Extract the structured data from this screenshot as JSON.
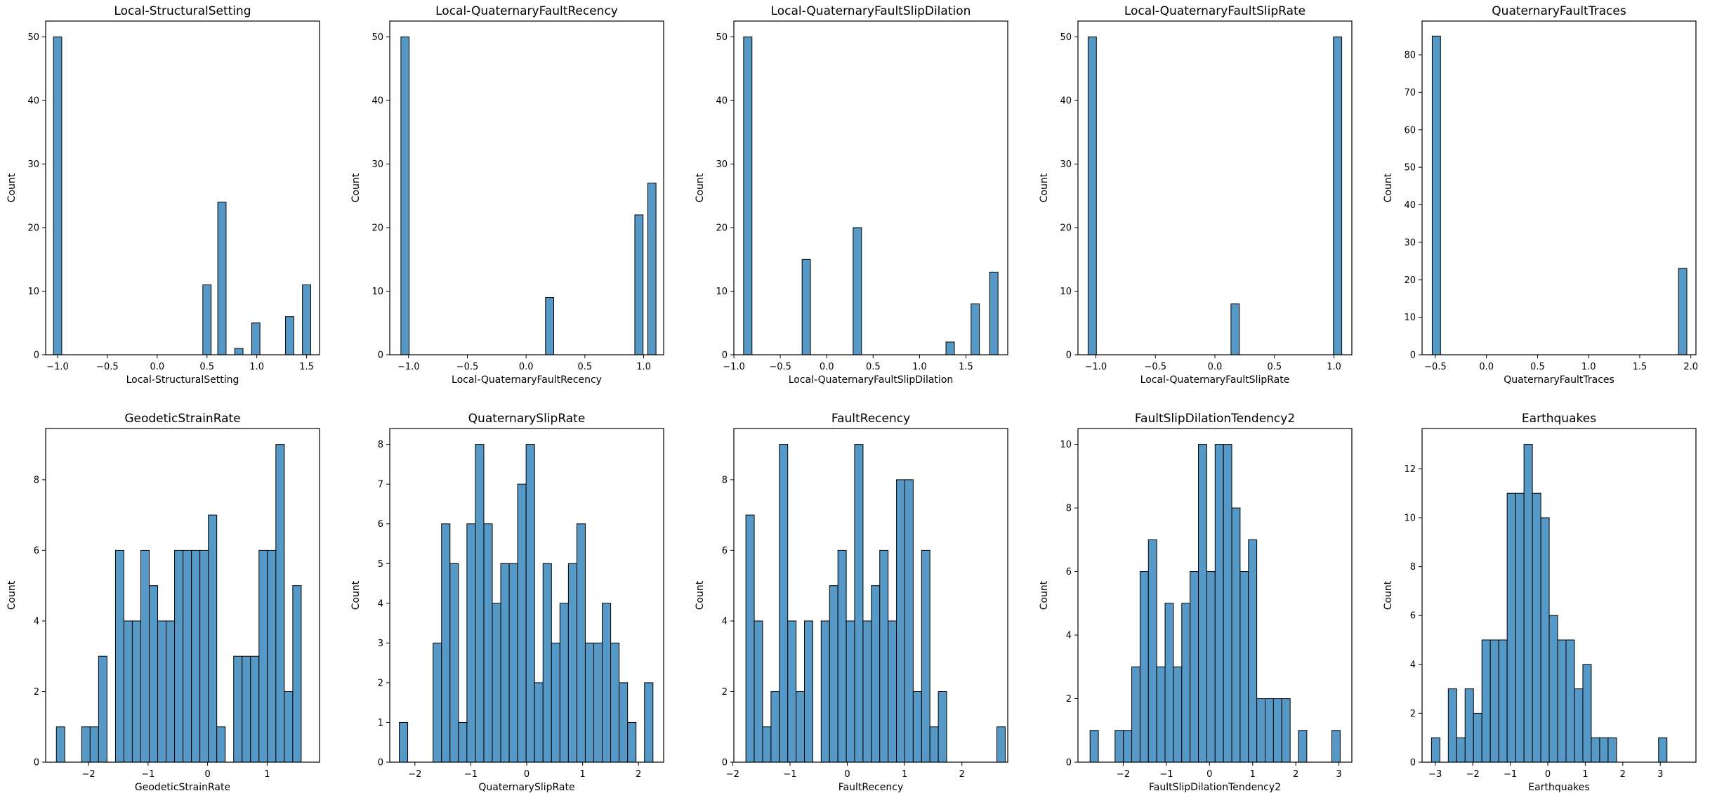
{
  "chart_data": [
    {
      "type": "bar",
      "title": "Local-StructuralSetting",
      "xlabel": "Local-StructuralSetting",
      "ylabel": "Count",
      "xlim": [
        -1.12,
        1.63
      ],
      "ylim": [
        0,
        52.5
      ],
      "xticks": [
        -1.0,
        -0.5,
        0.0,
        0.5,
        1.0,
        1.5
      ],
      "xtick_labels": [
        "−1.0",
        "−0.5",
        "0.0",
        "0.5",
        "1.0",
        "1.5"
      ],
      "yticks": [
        0,
        10,
        20,
        30,
        40,
        50
      ],
      "ytick_labels": [
        "0",
        "10",
        "20",
        "30",
        "40",
        "50"
      ],
      "bin_width": 0.0833,
      "bins": [
        {
          "x": -1.0,
          "count": 50
        },
        {
          "x": 0.5,
          "count": 11
        },
        {
          "x": 0.65,
          "count": 24
        },
        {
          "x": 0.82,
          "count": 1
        },
        {
          "x": 0.99,
          "count": 5
        },
        {
          "x": 1.33,
          "count": 6
        },
        {
          "x": 1.5,
          "count": 11
        }
      ]
    },
    {
      "type": "bar",
      "title": "Local-QuaternaryFaultRecency",
      "xlabel": "Local-QuaternaryFaultRecency",
      "ylabel": "Count",
      "xlim": [
        -1.16,
        1.17
      ],
      "ylim": [
        0,
        52.5
      ],
      "xticks": [
        -1.0,
        -0.5,
        0.0,
        0.5,
        1.0
      ],
      "xtick_labels": [
        "−1.0",
        "−0.5",
        "0.0",
        "0.5",
        "1.0"
      ],
      "yticks": [
        0,
        10,
        20,
        30,
        40,
        50
      ],
      "ytick_labels": [
        "0",
        "10",
        "20",
        "30",
        "40",
        "50"
      ],
      "bin_width": 0.07,
      "bins": [
        {
          "x": -1.03,
          "count": 50
        },
        {
          "x": 0.2,
          "count": 9
        },
        {
          "x": 0.96,
          "count": 22
        },
        {
          "x": 1.07,
          "count": 27
        }
      ]
    },
    {
      "type": "bar",
      "title": "Local-QuaternaryFaultSlipDilation",
      "xlabel": "Local-QuaternaryFaultSlipDilation",
      "ylabel": "Count",
      "xlim": [
        -1.0,
        1.95
      ],
      "ylim": [
        0,
        52.5
      ],
      "xticks": [
        -1.0,
        -0.5,
        0.0,
        0.5,
        1.0,
        1.5
      ],
      "xtick_labels": [
        "−1.0",
        "−0.5",
        "0.0",
        "0.5",
        "1.0",
        "1.5"
      ],
      "yticks": [
        0,
        10,
        20,
        30,
        40,
        50
      ],
      "ytick_labels": [
        "0",
        "10",
        "20",
        "30",
        "40",
        "50"
      ],
      "bin_width": 0.09,
      "bins": [
        {
          "x": -0.85,
          "count": 50
        },
        {
          "x": -0.22,
          "count": 15
        },
        {
          "x": 0.33,
          "count": 20
        },
        {
          "x": 1.33,
          "count": 2
        },
        {
          "x": 1.6,
          "count": 8
        },
        {
          "x": 1.8,
          "count": 13
        }
      ]
    },
    {
      "type": "bar",
      "title": "Local-QuaternaryFaultSlipRate",
      "xlabel": "Local-QuaternaryFaultSlipRate",
      "ylabel": "Count",
      "xlim": [
        -1.15,
        1.15
      ],
      "ylim": [
        0,
        52.5
      ],
      "xticks": [
        -1.0,
        -0.5,
        0.0,
        0.5,
        1.0
      ],
      "xtick_labels": [
        "−1.0",
        "−0.5",
        "0.0",
        "0.5",
        "1.0"
      ],
      "yticks": [
        0,
        10,
        20,
        30,
        40,
        50
      ],
      "ytick_labels": [
        "0",
        "10",
        "20",
        "30",
        "40",
        "50"
      ],
      "bin_width": 0.07,
      "bins": [
        {
          "x": -1.03,
          "count": 50
        },
        {
          "x": 0.17,
          "count": 8
        },
        {
          "x": 1.03,
          "count": 50
        }
      ]
    },
    {
      "type": "bar",
      "title": "QuaternaryFaultTraces",
      "xlabel": "QuaternaryFaultTraces",
      "ylabel": "Count",
      "xlim": [
        -0.63,
        2.05
      ],
      "ylim": [
        0,
        89
      ],
      "xticks": [
        -0.5,
        0.0,
        0.5,
        1.0,
        1.5,
        2.0
      ],
      "xtick_labels": [
        "−0.5",
        "0.0",
        "0.5",
        "1.0",
        "1.5",
        "2.0"
      ],
      "yticks": [
        0,
        10,
        20,
        30,
        40,
        50,
        60,
        70,
        80
      ],
      "ytick_labels": [
        "0",
        "10",
        "20",
        "30",
        "40",
        "50",
        "60",
        "70",
        "80"
      ],
      "bin_width": 0.0813,
      "bins": [
        {
          "x": -0.49,
          "count": 85
        },
        {
          "x": 1.92,
          "count": 23
        }
      ]
    },
    {
      "type": "bar",
      "title": "GeodeticStrainRate",
      "xlabel": "GeodeticStrainRate",
      "ylabel": "Count",
      "xlim": [
        -2.72,
        1.88
      ],
      "ylim": [
        0,
        9.45
      ],
      "xticks": [
        -2,
        -1,
        0,
        1
      ],
      "xtick_labels": [
        "−2",
        "−1",
        "0",
        "1"
      ],
      "yticks": [
        0,
        2,
        4,
        6,
        8
      ],
      "ytick_labels": [
        "0",
        "2",
        "4",
        "6",
        "8"
      ],
      "bin_start": -2.54,
      "bin_width": 0.1418,
      "counts": [
        1,
        0,
        0,
        1,
        1,
        3,
        0,
        6,
        4,
        4,
        6,
        5,
        4,
        4,
        6,
        6,
        6,
        6,
        7,
        1,
        0,
        3,
        3,
        3,
        6,
        6,
        9,
        2,
        5
      ]
    },
    {
      "type": "bar",
      "title": "QuaternarySlipRate",
      "xlabel": "QuaternarySlipRate",
      "ylabel": "Count",
      "xlim": [
        -2.45,
        2.45
      ],
      "ylim": [
        0,
        8.4
      ],
      "xticks": [
        -2,
        -1,
        0,
        1,
        2
      ],
      "xtick_labels": [
        "−2",
        "−1",
        "0",
        "1",
        "2"
      ],
      "yticks": [
        0,
        1,
        2,
        3,
        4,
        5,
        6,
        7,
        8
      ],
      "ytick_labels": [
        "0",
        "1",
        "2",
        "3",
        "4",
        "5",
        "6",
        "7",
        "8"
      ],
      "bin_start": -2.28,
      "bin_width": 0.1513,
      "counts": [
        1,
        0,
        0,
        0,
        3,
        6,
        5,
        1,
        6,
        8,
        6,
        4,
        5,
        5,
        7,
        8,
        2,
        5,
        3,
        4,
        5,
        6,
        3,
        3,
        4,
        3,
        2,
        1,
        0,
        2
      ]
    },
    {
      "type": "bar",
      "title": "FaultRecency",
      "xlabel": "FaultRecency",
      "ylabel": "Count",
      "xlim": [
        -1.98,
        2.8
      ],
      "ylim": [
        0,
        9.45
      ],
      "xticks": [
        -2,
        -1,
        0,
        1,
        2
      ],
      "xtick_labels": [
        "−2",
        "−1",
        "0",
        "1",
        "2"
      ],
      "yticks": [
        0,
        2,
        4,
        6,
        8
      ],
      "ytick_labels": [
        "0",
        "2",
        "4",
        "6",
        "8"
      ],
      "bin_start": -1.77,
      "bin_width": 0.146,
      "counts": [
        7,
        4,
        1,
        2,
        9,
        4,
        2,
        4,
        0,
        4,
        5,
        6,
        4,
        9,
        4,
        5,
        6,
        4,
        8,
        8,
        2,
        6,
        1,
        2,
        0,
        0,
        0,
        0,
        0,
        0,
        1
      ]
    },
    {
      "type": "bar",
      "title": "FaultSlipDilationTendency2",
      "xlabel": "FaultSlipDilationTendency2",
      "ylabel": "Count",
      "xlim": [
        -3.05,
        3.3
      ],
      "ylim": [
        0,
        10.5
      ],
      "xticks": [
        -2,
        -1,
        0,
        1,
        2,
        3
      ],
      "xtick_labels": [
        "−2",
        "−1",
        "0",
        "1",
        "2",
        "3"
      ],
      "yticks": [
        0,
        2,
        4,
        6,
        8,
        10
      ],
      "ytick_labels": [
        "0",
        "2",
        "4",
        "6",
        "8",
        "10"
      ],
      "bin_start": -2.77,
      "bin_width": 0.1933,
      "counts": [
        1,
        0,
        0,
        1,
        1,
        3,
        6,
        7,
        3,
        5,
        3,
        5,
        6,
        10,
        6,
        10,
        10,
        8,
        6,
        7,
        2,
        2,
        2,
        2,
        0,
        1,
        0,
        0,
        0,
        1
      ]
    },
    {
      "type": "bar",
      "title": "Earthquakes",
      "xlabel": "Earthquakes",
      "ylabel": "Count",
      "xlim": [
        -3.35,
        3.95
      ],
      "ylim": [
        0,
        13.65
      ],
      "xticks": [
        -3,
        -2,
        -1,
        0,
        1,
        2,
        3
      ],
      "xtick_labels": [
        "−3",
        "−2",
        "−1",
        "0",
        "1",
        "2",
        "3"
      ],
      "yticks": [
        0,
        2,
        4,
        6,
        8,
        10,
        12
      ],
      "ytick_labels": [
        "0",
        "2",
        "4",
        "6",
        "8",
        "10",
        "12"
      ],
      "bin_start": -3.1,
      "bin_width": 0.2242,
      "counts": [
        1,
        0,
        3,
        1,
        3,
        2,
        5,
        5,
        5,
        11,
        11,
        13,
        11,
        10,
        6,
        5,
        5,
        3,
        4,
        1,
        1,
        1,
        0,
        0,
        0,
        0,
        0,
        1
      ]
    }
  ]
}
